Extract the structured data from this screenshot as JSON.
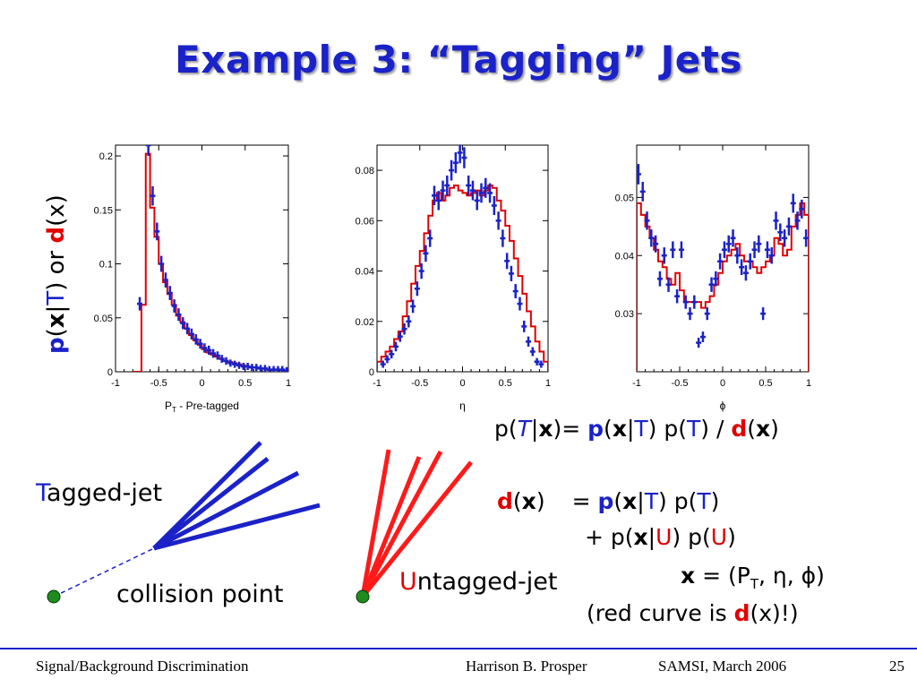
{
  "slide": {
    "title": "Example 3: “Tagging” Jets",
    "ylabel_parts": [
      "p",
      "(",
      "x",
      "|",
      "T",
      ") or ",
      "d",
      "(x)"
    ],
    "eq1": {
      "a": "p(",
      "b": "T",
      "c": "|",
      "d": "x",
      "e": ")= ",
      "f": "p",
      "g": "(",
      "h": "x",
      "i": "|",
      "j": "T",
      "k": ") p(",
      "l": "T",
      "m": ") / ",
      "n": "d",
      "o": "(",
      "p": "x",
      "q": ")"
    },
    "eq2": {
      "a": "d",
      "b": "(",
      "c": "x",
      "d": ")",
      "e": "= ",
      "f": "p",
      "g": "(",
      "h": "x",
      "i": "|",
      "j": "T",
      "k": ") p(",
      "l": "T",
      "m": ")"
    },
    "eq3": {
      "a": "+ p(",
      "b": "x",
      "c": "|",
      "d": "U",
      "e": ") p(",
      "f": "U",
      "g": ")"
    },
    "eq4": {
      "a": "x",
      "b": " = (P",
      "c": "T",
      "d": ", η, ϕ)"
    },
    "eq5": {
      "a": "(red curve is ",
      "b": "d",
      "c": "(x)!)"
    },
    "tagged_label": {
      "first": "T",
      "rest": "agged-jet"
    },
    "untagged_label": {
      "first": "U",
      "rest": "ntagged-jet"
    },
    "collision_label": "collision point",
    "colors": {
      "title": "#1a22c8",
      "highlight_red": "#e00000",
      "tagged_jet": "#1a22c8",
      "untagged_jet": "#ff1a1a",
      "collision_dot": "#1e8c1e",
      "hist": "#e00000",
      "points": "#1a22c8"
    }
  },
  "footer": {
    "left": "Signal/Background Discrimination",
    "author": "Harrison B. Prosper",
    "event": "SAMSI, March 2006",
    "page": "25"
  },
  "chart_data": [
    {
      "type": "line",
      "xlabel_main": "P",
      "xlabel_sub": "T",
      "xlabel_rest": " - Pre-tagged",
      "xlim": [
        -1,
        1
      ],
      "ylim": [
        0,
        0.21
      ],
      "xticks": [
        "-1",
        "-0.5",
        "0",
        "0.5",
        "1"
      ],
      "yticks": [
        "0",
        "0.05",
        "0.1",
        "0.15",
        "0.2"
      ],
      "ytick_values": [
        0,
        0.05,
        0.1,
        0.15,
        0.2
      ],
      "bin_edges": [
        -0.8,
        -0.7,
        -0.65,
        -0.6,
        -0.55,
        -0.5,
        -0.45,
        -0.4,
        -0.35,
        -0.3,
        -0.25,
        -0.2,
        -0.15,
        -0.1,
        -0.05,
        0,
        0.05,
        0.1,
        0.15,
        0.2,
        0.25,
        0.3,
        0.35,
        0.4,
        0.45,
        0.5,
        0.55,
        0.6,
        0.65,
        0.7,
        0.75,
        0.8,
        0.85,
        0.9,
        0.95,
        1.0
      ],
      "series": [
        {
          "style": "histogram",
          "values": [
            0,
            0.062,
            0.202,
            0.152,
            0.125,
            0.1,
            0.083,
            0.072,
            0.062,
            0.052,
            0.046,
            0.04,
            0.034,
            0.029,
            0.025,
            0.021,
            0.018,
            0.016,
            0.014,
            0.012,
            0.01,
            0.009,
            0.008,
            0.007,
            0.006,
            0.005,
            0.004,
            0.004,
            0.003,
            0.003,
            0.002,
            0.002,
            0.002,
            0.002,
            0.001
          ]
        },
        {
          "style": "points",
          "x": [
            -0.72,
            -0.62,
            -0.57,
            -0.52,
            -0.47,
            -0.42,
            -0.37,
            -0.32,
            -0.27,
            -0.22,
            -0.17,
            -0.12,
            -0.07,
            -0.02,
            0.03,
            0.08,
            0.13,
            0.18,
            0.23,
            0.28,
            0.33,
            0.38,
            0.43,
            0.48,
            0.53,
            0.58,
            0.63,
            0.68,
            0.73,
            0.78,
            0.83,
            0.88,
            0.93,
            0.98
          ],
          "y": [
            0.063,
            0.21,
            0.163,
            0.13,
            0.1,
            0.085,
            0.073,
            0.061,
            0.053,
            0.045,
            0.04,
            0.035,
            0.03,
            0.026,
            0.022,
            0.02,
            0.017,
            0.015,
            0.012,
            0.01,
            0.008,
            0.007,
            0.006,
            0.005,
            0.005,
            0.004,
            0.004,
            0.003,
            0.003,
            0.002,
            0.002,
            0.002,
            0.002,
            0.001
          ]
        }
      ]
    },
    {
      "type": "line",
      "xlabel_main": "η",
      "xlim": [
        -1,
        1
      ],
      "ylim": [
        0,
        0.09
      ],
      "xticks": [
        "-1",
        "-0.5",
        "0",
        "0.5",
        "1"
      ],
      "yticks": [
        "0",
        "0.02",
        "0.04",
        "0.06",
        "0.08"
      ],
      "ytick_values": [
        0,
        0.02,
        0.04,
        0.06,
        0.08
      ],
      "bin_edges": [
        -1,
        -0.95,
        -0.9,
        -0.85,
        -0.8,
        -0.75,
        -0.7,
        -0.65,
        -0.6,
        -0.55,
        -0.5,
        -0.45,
        -0.4,
        -0.35,
        -0.3,
        -0.25,
        -0.2,
        -0.15,
        -0.1,
        -0.05,
        0,
        0.05,
        0.1,
        0.15,
        0.2,
        0.25,
        0.3,
        0.35,
        0.4,
        0.45,
        0.5,
        0.55,
        0.6,
        0.65,
        0.7,
        0.75,
        0.8,
        0.85,
        0.9,
        0.95,
        1.0
      ],
      "series": [
        {
          "style": "histogram",
          "values": [
            0.004,
            0.006,
            0.008,
            0.01,
            0.013,
            0.016,
            0.022,
            0.028,
            0.035,
            0.042,
            0.048,
            0.055,
            0.062,
            0.068,
            0.071,
            0.068,
            0.07,
            0.073,
            0.074,
            0.072,
            0.071,
            0.07,
            0.071,
            0.072,
            0.07,
            0.072,
            0.074,
            0.073,
            0.068,
            0.064,
            0.058,
            0.052,
            0.045,
            0.038,
            0.031,
            0.024,
            0.018,
            0.012,
            0.008,
            0.004
          ]
        },
        {
          "style": "points",
          "x": [
            -0.93,
            -0.88,
            -0.83,
            -0.78,
            -0.73,
            -0.68,
            -0.63,
            -0.58,
            -0.53,
            -0.48,
            -0.43,
            -0.38,
            -0.33,
            -0.28,
            -0.23,
            -0.18,
            -0.13,
            -0.08,
            -0.03,
            0.02,
            0.07,
            0.12,
            0.17,
            0.22,
            0.27,
            0.32,
            0.37,
            0.42,
            0.47,
            0.52,
            0.57,
            0.62,
            0.67,
            0.72,
            0.77,
            0.82,
            0.87,
            0.92
          ],
          "y": [
            0.003,
            0.005,
            0.007,
            0.01,
            0.014,
            0.017,
            0.02,
            0.026,
            0.033,
            0.04,
            0.047,
            0.053,
            0.07,
            0.068,
            0.072,
            0.074,
            0.08,
            0.083,
            0.087,
            0.085,
            0.074,
            0.072,
            0.068,
            0.071,
            0.073,
            0.071,
            0.066,
            0.06,
            0.053,
            0.044,
            0.039,
            0.032,
            0.027,
            0.018,
            0.012,
            0.008,
            0.004,
            0.003
          ]
        }
      ]
    },
    {
      "type": "line",
      "xlabel_main": "ϕ",
      "xlim": [
        -1,
        1
      ],
      "ylim": [
        0.02,
        0.059
      ],
      "xticks": [
        "-1",
        "-0.5",
        "0",
        "0.5",
        "1"
      ],
      "yticks": [
        "0.03",
        "0.04",
        "0.05"
      ],
      "ytick_values": [
        0.03,
        0.04,
        0.05
      ],
      "bin_edges": [
        -1,
        -0.95,
        -0.9,
        -0.85,
        -0.8,
        -0.75,
        -0.7,
        -0.65,
        -0.6,
        -0.55,
        -0.5,
        -0.45,
        -0.4,
        -0.35,
        -0.3,
        -0.25,
        -0.2,
        -0.15,
        -0.1,
        -0.05,
        0,
        0.05,
        0.1,
        0.15,
        0.2,
        0.25,
        0.3,
        0.35,
        0.4,
        0.45,
        0.5,
        0.55,
        0.6,
        0.65,
        0.7,
        0.75,
        0.8,
        0.85,
        0.9,
        0.95,
        1.0
      ],
      "series": [
        {
          "style": "histogram",
          "values": [
            0.049,
            0.047,
            0.045,
            0.043,
            0.041,
            0.039,
            0.038,
            0.036,
            0.035,
            0.037,
            0.034,
            0.032,
            0.032,
            0.032,
            0.032,
            0.031,
            0.032,
            0.033,
            0.035,
            0.037,
            0.039,
            0.04,
            0.041,
            0.042,
            0.04,
            0.039,
            0.039,
            0.038,
            0.037,
            0.038,
            0.039,
            0.04,
            0.043,
            0.042,
            0.04,
            0.041,
            0.045,
            0.047,
            0.049,
            0.047
          ]
        },
        {
          "style": "points",
          "x": [
            -0.98,
            -0.93,
            -0.88,
            -0.83,
            -0.78,
            -0.73,
            -0.68,
            -0.63,
            -0.58,
            -0.53,
            -0.48,
            -0.43,
            -0.38,
            -0.33,
            -0.28,
            -0.23,
            -0.18,
            -0.13,
            -0.08,
            -0.03,
            0.02,
            0.07,
            0.12,
            0.17,
            0.22,
            0.27,
            0.32,
            0.37,
            0.42,
            0.47,
            0.52,
            0.57,
            0.62,
            0.67,
            0.72,
            0.77,
            0.82,
            0.87,
            0.92,
            0.97
          ],
          "y": [
            0.054,
            0.051,
            0.046,
            0.043,
            0.042,
            0.036,
            0.04,
            0.035,
            0.041,
            0.033,
            0.041,
            0.032,
            0.03,
            0.032,
            0.025,
            0.026,
            0.03,
            0.035,
            0.036,
            0.039,
            0.041,
            0.042,
            0.043,
            0.04,
            0.038,
            0.037,
            0.039,
            0.041,
            0.042,
            0.03,
            0.041,
            0.04,
            0.046,
            0.044,
            0.043,
            0.045,
            0.049,
            0.046,
            0.048,
            0.043
          ]
        }
      ]
    }
  ]
}
